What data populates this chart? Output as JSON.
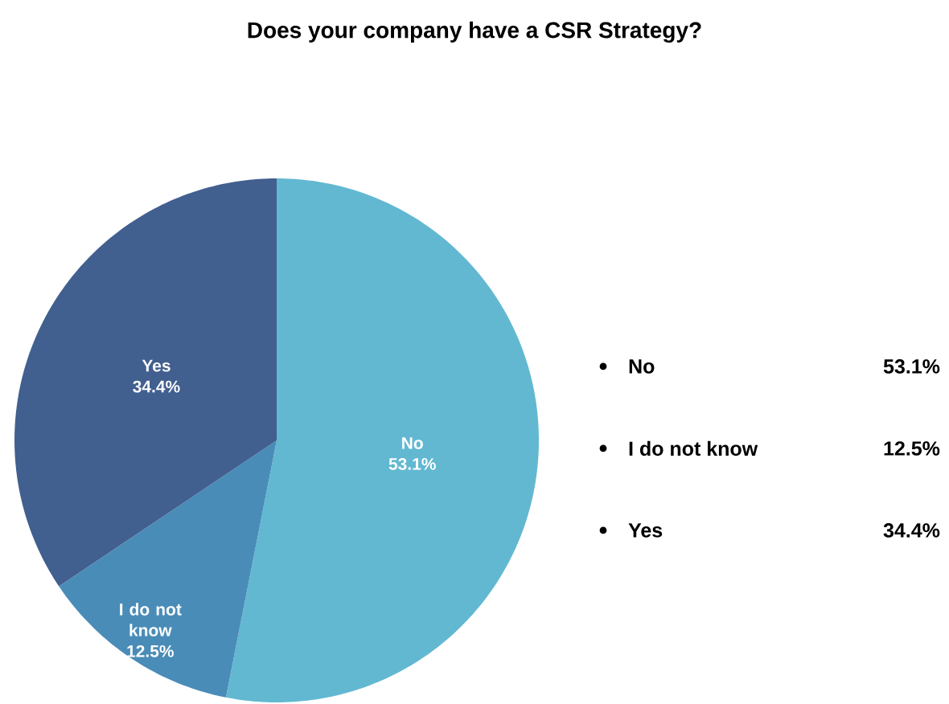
{
  "chart_data": {
    "type": "pie",
    "title": "Does your company have a CSR Strategy?",
    "categories": [
      "No",
      "I do not know",
      "Yes"
    ],
    "values": [
      53.1,
      12.5,
      34.4
    ],
    "value_labels": [
      "53.1%",
      "12.5%",
      "34.4%"
    ],
    "colors": [
      "#62b8d1",
      "#4a8cb8",
      "#415f8f"
    ]
  }
}
